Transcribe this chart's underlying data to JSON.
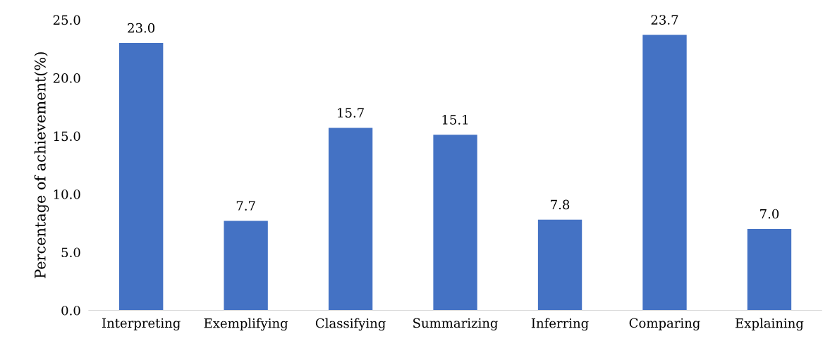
{
  "chart_data": {
    "type": "bar",
    "ylabel": "Percentage of achievement(%)",
    "categories": [
      "Interpreting",
      "Exemplifying",
      "Classifying",
      "Summarizing",
      "Inferring",
      "Comparing",
      "Explaining"
    ],
    "values": [
      23.0,
      7.7,
      15.7,
      15.1,
      7.8,
      23.7,
      7.0
    ],
    "value_labels": [
      "23.0",
      "7.7",
      "15.7",
      "15.1",
      "7.8",
      "23.7",
      "7.0"
    ],
    "color": "#4472c4",
    "ylim": [
      0,
      25
    ],
    "yticks": [
      {
        "value": 0,
        "label": "0.0"
      },
      {
        "value": 5,
        "label": "5.0"
      },
      {
        "value": 10,
        "label": "10.0"
      },
      {
        "value": 15,
        "label": "15.0"
      },
      {
        "value": 20,
        "label": "20.0"
      },
      {
        "value": 25,
        "label": "25.0"
      }
    ],
    "grid": false
  }
}
